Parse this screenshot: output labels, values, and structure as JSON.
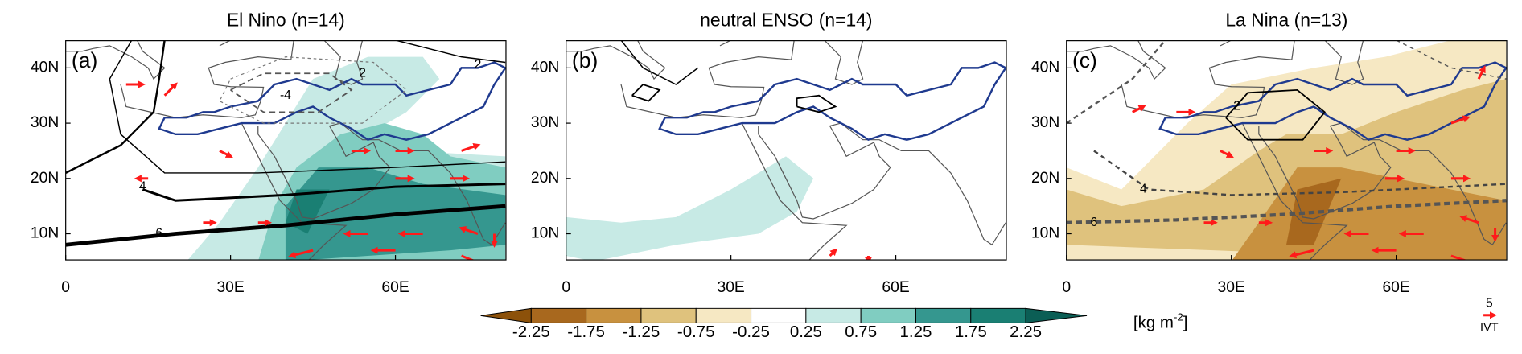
{
  "panels": [
    {
      "title": "El Nino (n=14)",
      "label": "(a)",
      "contour_labels": [
        "2",
        "2",
        "-4",
        "4",
        "6"
      ]
    },
    {
      "title": "neutral ENSO (n=14)",
      "label": "(b)"
    },
    {
      "title": "La Nina (n=13)",
      "label": "(c)",
      "contour_labels": [
        "2",
        "4",
        "6"
      ]
    }
  ],
  "lat_labels": [
    "40N",
    "30N",
    "20N",
    "10N"
  ],
  "lon_labels": [
    "0",
    "30E",
    "60E"
  ],
  "colorbar": {
    "ticks": [
      -2.25,
      -1.75,
      -1.25,
      -0.75,
      -0.25,
      0.25,
      0.75,
      1.25,
      1.75,
      2.25
    ],
    "colors": [
      "#8c510a",
      "#a8681e",
      "#c8913f",
      "#dfc27d",
      "#f6e8c3",
      "#ffffff",
      "#c7eae5",
      "#80cdc1",
      "#35978f",
      "#1a7f73",
      "#0b5e55"
    ]
  },
  "unit": {
    "text": "[kg m",
    "sup": "-2",
    "end": "]"
  },
  "ivt_legend": {
    "value": "5",
    "label": "IVT"
  }
}
